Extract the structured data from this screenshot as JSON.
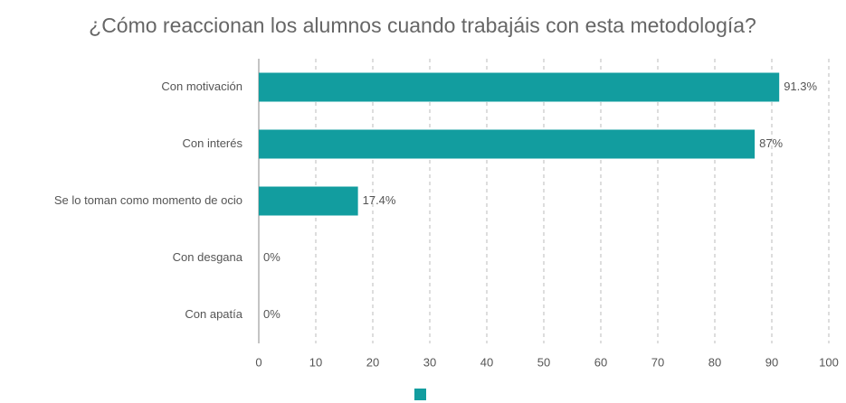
{
  "chart_data": {
    "type": "hbar",
    "title": "¿Cómo reaccionan los alumnos cuando trabajáis con esta metodología?",
    "categories": [
      "Con motivación",
      "Con interés",
      "Se lo toman como momento de ocio",
      "Con desgana",
      "Con apatía"
    ],
    "values": [
      91.3,
      87,
      17.4,
      0,
      0
    ],
    "value_labels": [
      "91.3%",
      "87%",
      "17.4%",
      "0%",
      "0%"
    ],
    "color": "#129d9f",
    "xlim": [
      0,
      100
    ],
    "xticks": [
      0,
      10,
      20,
      30,
      40,
      50,
      60,
      70,
      80,
      90,
      100
    ],
    "grid": true
  }
}
